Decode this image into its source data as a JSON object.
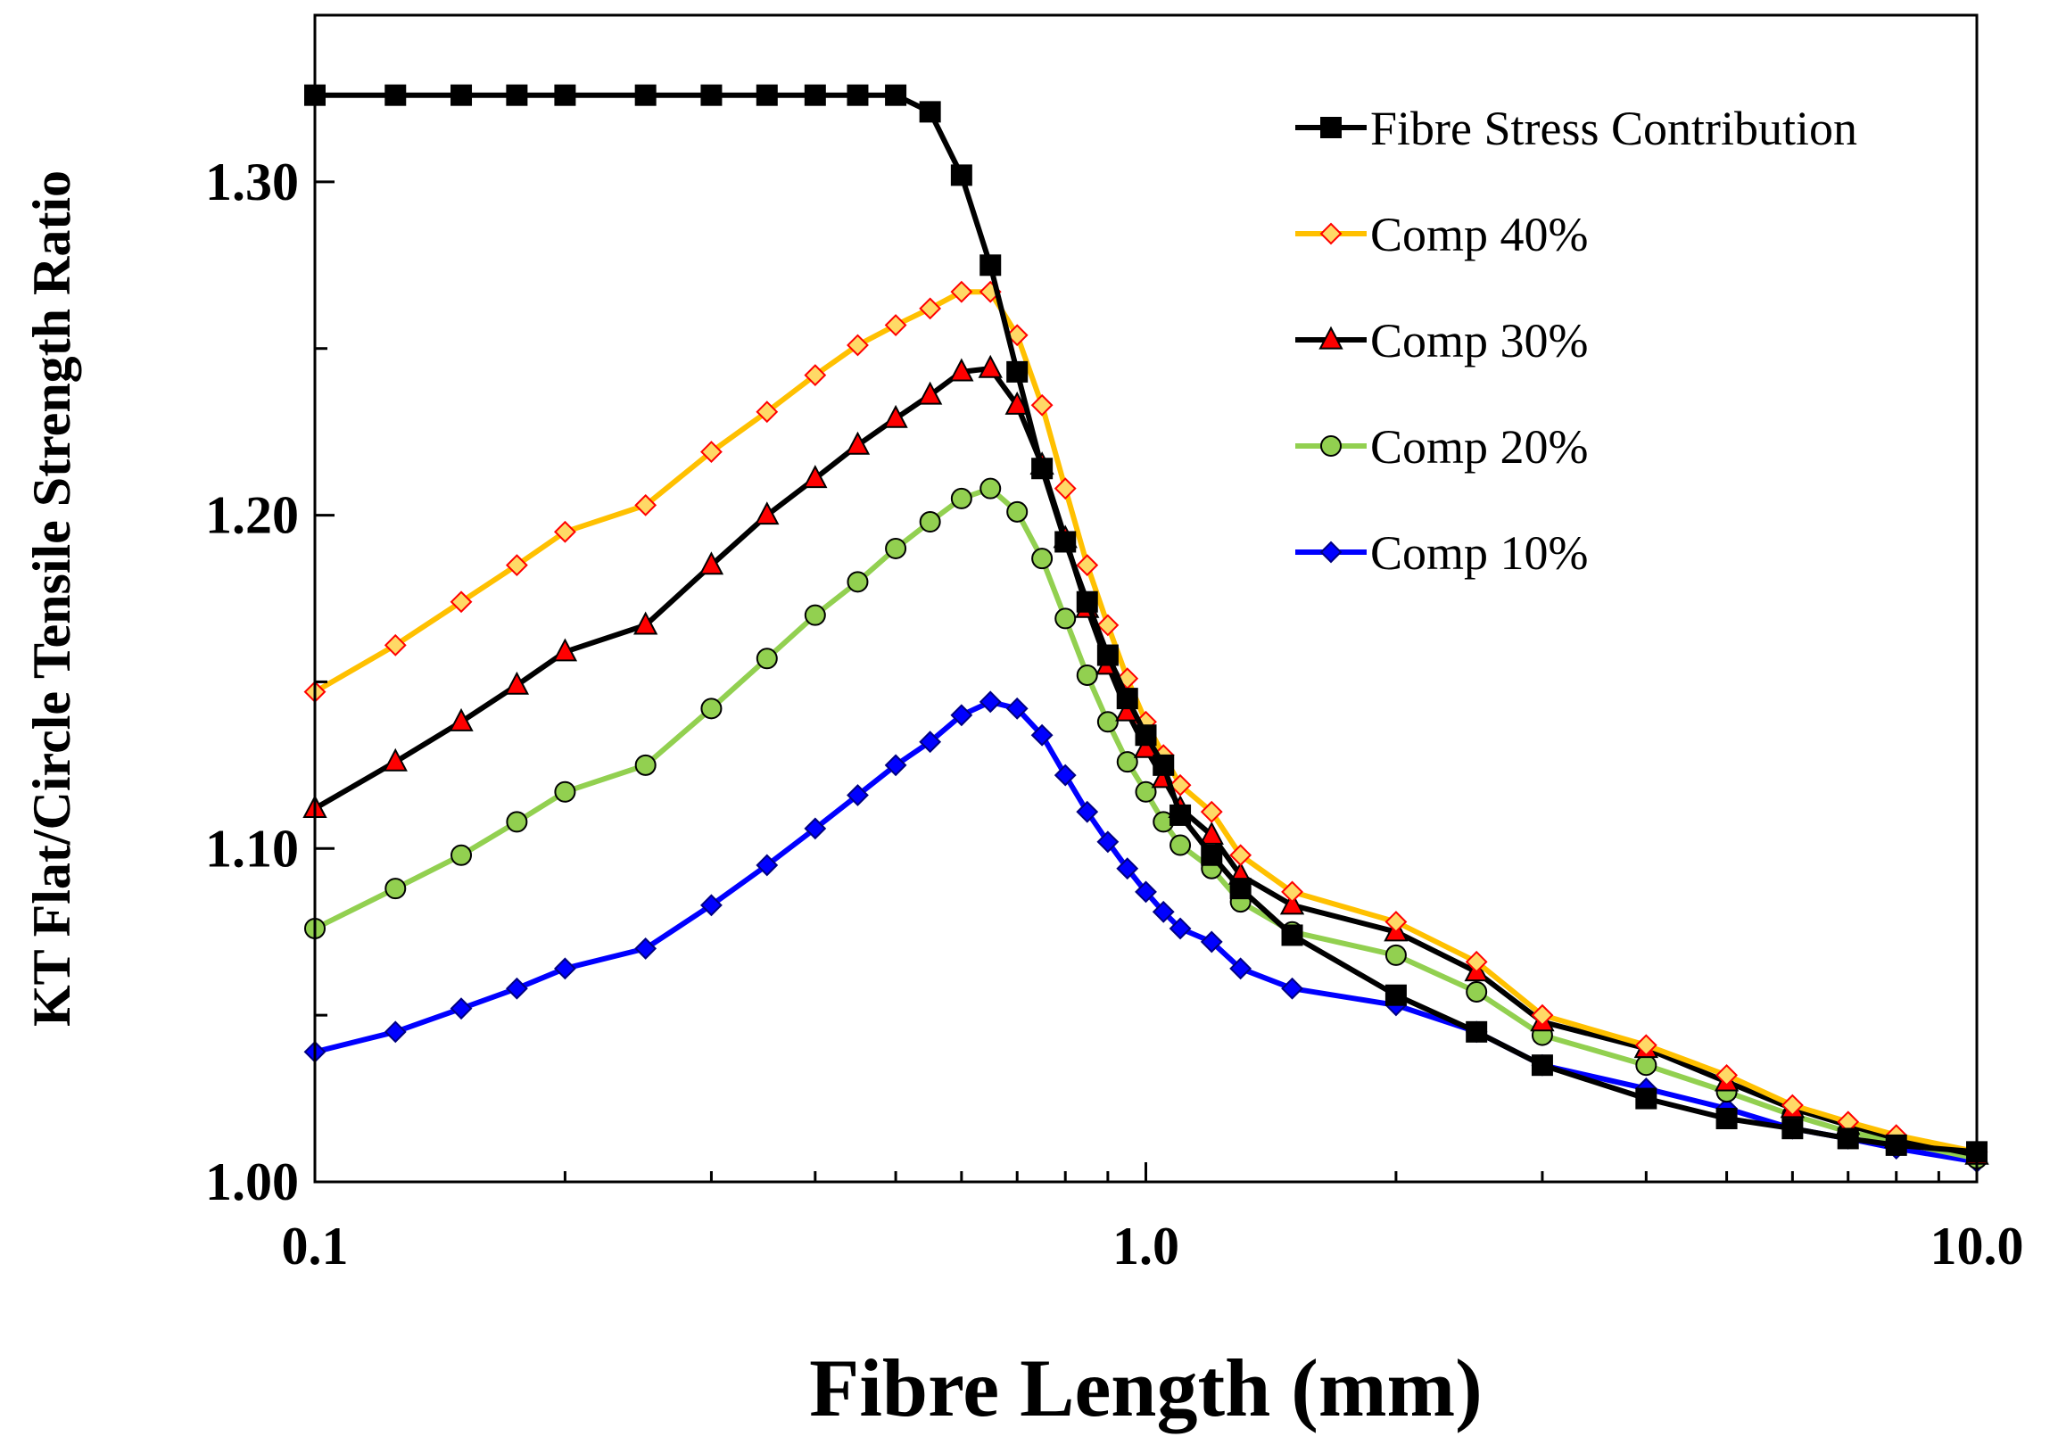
{
  "chart_data": {
    "type": "line",
    "xlabel": "Fibre Length (mm)",
    "ylabel": "KT Flat/Circle Tensile Strength Ratio",
    "x_scale": "log",
    "xlim": [
      0.1,
      10.0
    ],
    "ylim": [
      1.0,
      1.35
    ],
    "x_ticks": [
      0.1,
      1.0,
      10.0
    ],
    "x_tick_labels": [
      "0.1",
      "1.0",
      "10.0"
    ],
    "y_ticks": [
      1.0,
      1.1,
      1.2,
      1.3
    ],
    "y_tick_labels": [
      "1.00",
      "1.10",
      "1.20",
      "1.30"
    ],
    "y_minor_ticks": [
      1.05,
      1.15,
      1.25
    ],
    "grid": false,
    "legend_position": "top-right",
    "series": [
      {
        "name": "Fibre Stress Contribution",
        "line_color": "#000000",
        "marker": "square",
        "marker_fill": "#000000",
        "marker_stroke": "#000000",
        "points": [
          [
            0.1,
            1.326
          ],
          [
            0.125,
            1.326
          ],
          [
            0.15,
            1.326
          ],
          [
            0.175,
            1.326
          ],
          [
            0.2,
            1.326
          ],
          [
            0.25,
            1.326
          ],
          [
            0.3,
            1.326
          ],
          [
            0.35,
            1.326
          ],
          [
            0.4,
            1.326
          ],
          [
            0.45,
            1.326
          ],
          [
            0.5,
            1.326
          ],
          [
            0.55,
            1.321
          ],
          [
            0.6,
            1.302
          ],
          [
            0.65,
            1.275
          ],
          [
            0.7,
            1.243
          ],
          [
            0.75,
            1.214
          ],
          [
            0.8,
            1.192
          ],
          [
            0.85,
            1.174
          ],
          [
            0.9,
            1.158
          ],
          [
            0.95,
            1.145
          ],
          [
            1.0,
            1.134
          ],
          [
            1.05,
            1.125
          ],
          [
            1.1,
            1.11
          ],
          [
            1.2,
            1.098
          ],
          [
            1.3,
            1.088
          ],
          [
            1.5,
            1.074
          ],
          [
            2.0,
            1.056
          ],
          [
            2.5,
            1.045
          ],
          [
            3.0,
            1.035
          ],
          [
            4.0,
            1.025
          ],
          [
            5.0,
            1.019
          ],
          [
            6.0,
            1.016
          ],
          [
            7.0,
            1.013
          ],
          [
            8.0,
            1.011
          ],
          [
            10.0,
            1.009
          ]
        ]
      },
      {
        "name": "Comp 40%",
        "line_color": "#FFC000",
        "marker": "diamond",
        "marker_fill": "#FFD966",
        "marker_stroke": "#FF0000",
        "points": [
          [
            0.1,
            1.147
          ],
          [
            0.125,
            1.161
          ],
          [
            0.15,
            1.174
          ],
          [
            0.175,
            1.185
          ],
          [
            0.2,
            1.195
          ],
          [
            0.25,
            1.203
          ],
          [
            0.3,
            1.219
          ],
          [
            0.35,
            1.231
          ],
          [
            0.4,
            1.242
          ],
          [
            0.45,
            1.251
          ],
          [
            0.5,
            1.257
          ],
          [
            0.55,
            1.262
          ],
          [
            0.6,
            1.267
          ],
          [
            0.65,
            1.267
          ],
          [
            0.7,
            1.254
          ],
          [
            0.75,
            1.233
          ],
          [
            0.8,
            1.208
          ],
          [
            0.85,
            1.185
          ],
          [
            0.9,
            1.167
          ],
          [
            0.95,
            1.151
          ],
          [
            1.0,
            1.138
          ],
          [
            1.05,
            1.128
          ],
          [
            1.1,
            1.119
          ],
          [
            1.2,
            1.111
          ],
          [
            1.3,
            1.098
          ],
          [
            1.5,
            1.087
          ],
          [
            2.0,
            1.078
          ],
          [
            2.5,
            1.066
          ],
          [
            3.0,
            1.05
          ],
          [
            4.0,
            1.041
          ],
          [
            5.0,
            1.032
          ],
          [
            6.0,
            1.023
          ],
          [
            7.0,
            1.018
          ],
          [
            8.0,
            1.014
          ],
          [
            10.0,
            1.009
          ]
        ]
      },
      {
        "name": "Comp 30%",
        "line_color": "#000000",
        "marker": "triangle",
        "marker_fill": "#FF0000",
        "marker_stroke": "#000000",
        "points": [
          [
            0.1,
            1.112
          ],
          [
            0.125,
            1.126
          ],
          [
            0.15,
            1.138
          ],
          [
            0.175,
            1.149
          ],
          [
            0.2,
            1.159
          ],
          [
            0.25,
            1.167
          ],
          [
            0.3,
            1.185
          ],
          [
            0.35,
            1.2
          ],
          [
            0.4,
            1.211
          ],
          [
            0.45,
            1.221
          ],
          [
            0.5,
            1.229
          ],
          [
            0.55,
            1.236
          ],
          [
            0.6,
            1.243
          ],
          [
            0.65,
            1.244
          ],
          [
            0.7,
            1.233
          ],
          [
            0.75,
            1.215
          ],
          [
            0.8,
            1.193
          ],
          [
            0.85,
            1.172
          ],
          [
            0.9,
            1.155
          ],
          [
            0.95,
            1.141
          ],
          [
            1.0,
            1.13
          ],
          [
            1.05,
            1.121
          ],
          [
            1.1,
            1.112
          ],
          [
            1.2,
            1.104
          ],
          [
            1.3,
            1.092
          ],
          [
            1.5,
            1.083
          ],
          [
            2.0,
            1.075
          ],
          [
            2.5,
            1.063
          ],
          [
            3.0,
            1.048
          ],
          [
            4.0,
            1.04
          ],
          [
            5.0,
            1.03
          ],
          [
            6.0,
            1.022
          ],
          [
            7.0,
            1.017
          ],
          [
            8.0,
            1.013
          ],
          [
            10.0,
            1.008
          ]
        ]
      },
      {
        "name": "Comp 20%",
        "line_color": "#92D050",
        "marker": "circle",
        "marker_fill": "#92D050",
        "marker_stroke": "#000000",
        "points": [
          [
            0.1,
            1.076
          ],
          [
            0.125,
            1.088
          ],
          [
            0.15,
            1.098
          ],
          [
            0.175,
            1.108
          ],
          [
            0.2,
            1.117
          ],
          [
            0.25,
            1.125
          ],
          [
            0.3,
            1.142
          ],
          [
            0.35,
            1.157
          ],
          [
            0.4,
            1.17
          ],
          [
            0.45,
            1.18
          ],
          [
            0.5,
            1.19
          ],
          [
            0.55,
            1.198
          ],
          [
            0.6,
            1.205
          ],
          [
            0.65,
            1.208
          ],
          [
            0.7,
            1.201
          ],
          [
            0.75,
            1.187
          ],
          [
            0.8,
            1.169
          ],
          [
            0.85,
            1.152
          ],
          [
            0.9,
            1.138
          ],
          [
            0.95,
            1.126
          ],
          [
            1.0,
            1.117
          ],
          [
            1.05,
            1.108
          ],
          [
            1.1,
            1.101
          ],
          [
            1.2,
            1.094
          ],
          [
            1.3,
            1.084
          ],
          [
            1.5,
            1.075
          ],
          [
            2.0,
            1.068
          ],
          [
            2.5,
            1.057
          ],
          [
            3.0,
            1.044
          ],
          [
            4.0,
            1.035
          ],
          [
            5.0,
            1.027
          ],
          [
            6.0,
            1.02
          ],
          [
            7.0,
            1.015
          ],
          [
            8.0,
            1.012
          ],
          [
            10.0,
            1.007
          ]
        ]
      },
      {
        "name": "Comp 10%",
        "line_color": "#0000FF",
        "marker": "diamond",
        "marker_fill": "#0000FF",
        "marker_stroke": "#000080",
        "points": [
          [
            0.1,
            1.039
          ],
          [
            0.125,
            1.045
          ],
          [
            0.15,
            1.052
          ],
          [
            0.175,
            1.058
          ],
          [
            0.2,
            1.064
          ],
          [
            0.25,
            1.07
          ],
          [
            0.3,
            1.083
          ],
          [
            0.35,
            1.095
          ],
          [
            0.4,
            1.106
          ],
          [
            0.45,
            1.116
          ],
          [
            0.5,
            1.125
          ],
          [
            0.55,
            1.132
          ],
          [
            0.6,
            1.14
          ],
          [
            0.65,
            1.144
          ],
          [
            0.7,
            1.142
          ],
          [
            0.75,
            1.134
          ],
          [
            0.8,
            1.122
          ],
          [
            0.85,
            1.111
          ],
          [
            0.9,
            1.102
          ],
          [
            0.95,
            1.094
          ],
          [
            1.0,
            1.087
          ],
          [
            1.05,
            1.081
          ],
          [
            1.1,
            1.076
          ],
          [
            1.2,
            1.072
          ],
          [
            1.3,
            1.064
          ],
          [
            1.5,
            1.058
          ],
          [
            2.0,
            1.053
          ],
          [
            2.5,
            1.045
          ],
          [
            3.0,
            1.035
          ],
          [
            4.0,
            1.028
          ],
          [
            5.0,
            1.022
          ],
          [
            6.0,
            1.016
          ],
          [
            7.0,
            1.013
          ],
          [
            8.0,
            1.01
          ],
          [
            10.0,
            1.006
          ]
        ]
      }
    ]
  }
}
